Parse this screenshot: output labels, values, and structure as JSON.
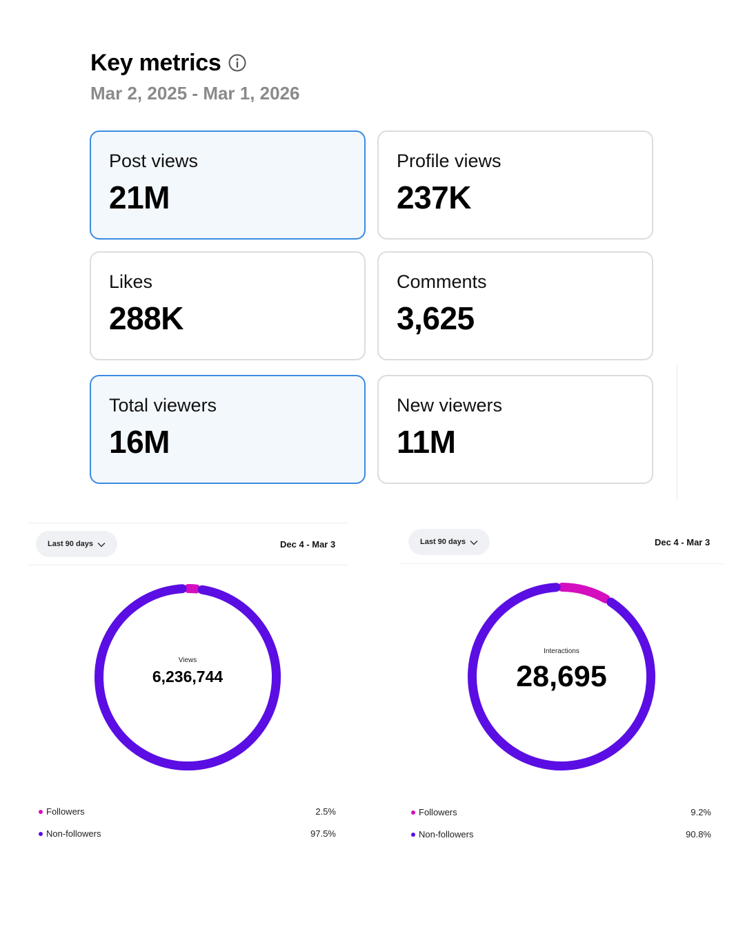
{
  "header": {
    "title": "Key metrics",
    "date_range": "Mar 2, 2025 - Mar 1, 2026"
  },
  "metrics": [
    {
      "label": "Post views",
      "value": "21M",
      "selected": true
    },
    {
      "label": "Profile views",
      "value": "237K",
      "selected": false
    },
    {
      "label": "Likes",
      "value": "288K",
      "selected": false
    },
    {
      "label": "Comments",
      "value": "3,625",
      "selected": false
    },
    {
      "label": "Total viewers",
      "value": "16M",
      "selected": true
    },
    {
      "label": "New viewers",
      "value": "11M",
      "selected": false
    }
  ],
  "colors": {
    "followers": "#d40fbf",
    "non_followers": "#5b0ee3",
    "selected_border": "#3a8be2"
  },
  "panels": [
    {
      "range_label": "Last 90 days",
      "date": "Dec 4 - Mar 3",
      "center_label": "Views",
      "center_value": "6,236,744",
      "legend": [
        {
          "name": "Followers",
          "value": "2.5%",
          "percent": 2.5
        },
        {
          "name": "Non-followers",
          "value": "97.5%",
          "percent": 97.5
        }
      ]
    },
    {
      "range_label": "Last 90 days",
      "date": "Dec 4 - Mar 3",
      "center_label": "Interactions",
      "center_value": "28,695",
      "legend": [
        {
          "name": "Followers",
          "value": "9.2%",
          "percent": 9.2
        },
        {
          "name": "Non-followers",
          "value": "90.8%",
          "percent": 90.8
        }
      ]
    }
  ]
}
